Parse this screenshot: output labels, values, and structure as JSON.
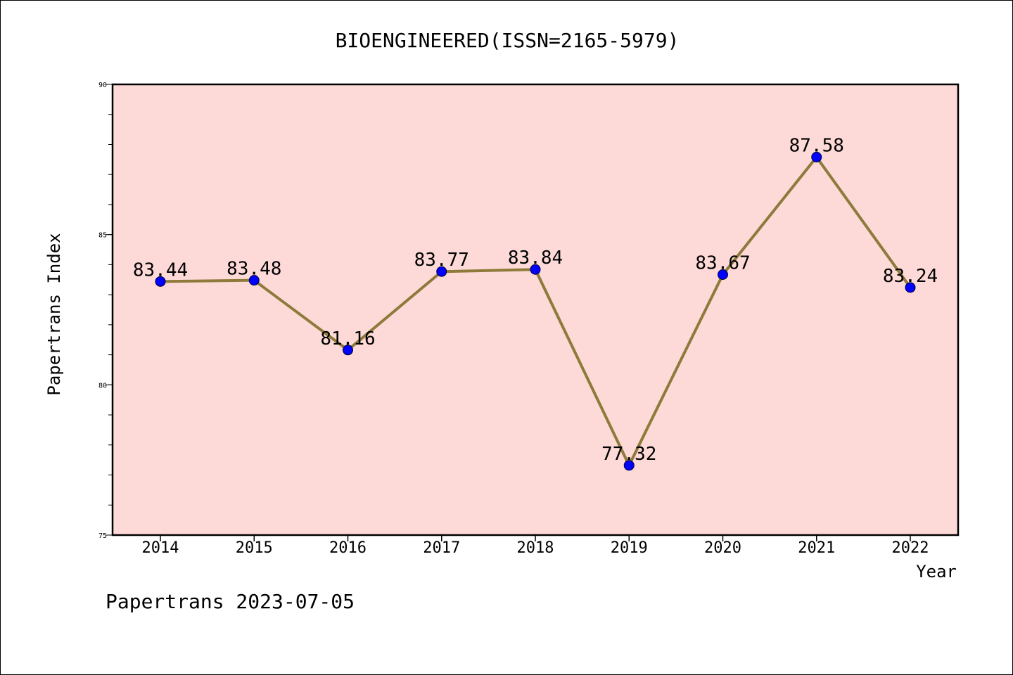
{
  "chart_data": {
    "type": "line",
    "title": "BIOENGINEERED(ISSN=2165-5979)",
    "xlabel": "Year",
    "ylabel": "Papertrans Index",
    "categories": [
      "2014",
      "2015",
      "2016",
      "2017",
      "2018",
      "2019",
      "2020",
      "2021",
      "2022"
    ],
    "series": [
      {
        "values": [
          83.44,
          83.48,
          81.16,
          83.77,
          83.84,
          77.32,
          83.67,
          87.58,
          83.24
        ],
        "data_labels": [
          "83.44",
          "83.48",
          "81.16",
          "83.77",
          "83.84",
          "77.32",
          "83.67",
          "87.58",
          "83.24"
        ]
      }
    ],
    "ylim": [
      75,
      90
    ],
    "yticks": [
      "75",
      "80",
      "85",
      "90"
    ],
    "grid": false,
    "legend": "none",
    "colors": {
      "plot_background": "#fddad7",
      "line": "#8e7a3a",
      "marker": "#0000ff"
    }
  },
  "footer": {
    "text": "Papertrans 2023-07-05"
  }
}
